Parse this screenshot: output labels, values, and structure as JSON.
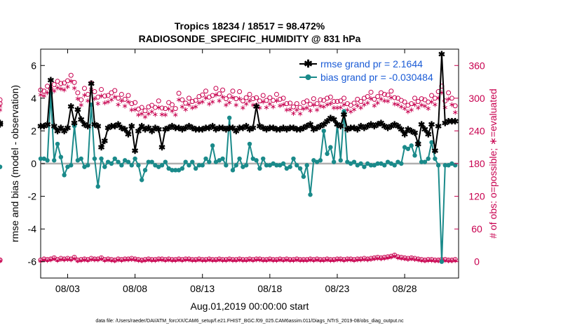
{
  "chart_data": {
    "type": "line",
    "title_line1": "Tropics 18234 / 18517 = 98.472%",
    "title_line2": "RADIOSONDE_SPECIFIC_HUMIDITY @ 831 hPa",
    "xlabel": "Aug.01,2019 00:00:00 start",
    "ylabel": "rmse and bias (model - observation)",
    "y2label": "# of obs: o=possible; ∗=evaluated",
    "footnote": "data file: /Users/raeder/DAI/ATM_forcXX/CAM6_setup/f.e21.FHIST_BGC.f09_025.CAM6assim.011/Diags_NTrS_2019-08/obs_diag_output.nc",
    "xlim": [
      1.0,
      32.0
    ],
    "ylim": [
      -7,
      7
    ],
    "y2lim": [
      -30,
      390
    ],
    "xticks": [
      3,
      8,
      13,
      18,
      23,
      28
    ],
    "xtick_labels": [
      "08/03",
      "08/08",
      "08/13",
      "08/18",
      "08/23",
      "08/28"
    ],
    "yticks": [
      -6,
      -4,
      -2,
      0,
      2,
      4,
      6
    ],
    "ytick_labels": [
      "-6",
      "-4",
      "-2",
      "0",
      "2",
      "4",
      "6"
    ],
    "y2ticks": [
      0,
      60,
      120,
      180,
      240,
      300,
      360
    ],
    "y2tick_labels": [
      "0",
      "60",
      "120",
      "180",
      "240",
      "300",
      "360"
    ],
    "legend": [
      {
        "label": "rmse grand pr = 2.1644",
        "color": "#000000"
      },
      {
        "label": "bias grand pr = -0.030484",
        "color": "#1a8a8a"
      }
    ],
    "colors": {
      "rmse": "#000000",
      "bias": "#1a8a8a",
      "obs": "#c8004f",
      "zero": "#b0b0b0"
    },
    "x": [
      1.0,
      1.25,
      1.5,
      1.75,
      2.0,
      2.25,
      2.5,
      2.75,
      3.0,
      3.25,
      3.5,
      3.75,
      4.0,
      4.25,
      4.5,
      4.75,
      5.0,
      5.25,
      5.5,
      5.75,
      6.0,
      6.25,
      6.5,
      6.75,
      7.0,
      7.25,
      7.5,
      7.75,
      8.0,
      8.25,
      8.5,
      8.75,
      9.0,
      9.25,
      9.5,
      9.75,
      10.0,
      10.25,
      10.5,
      10.75,
      11.0,
      11.25,
      11.5,
      11.75,
      12.0,
      12.25,
      12.5,
      12.75,
      13.0,
      13.25,
      13.5,
      13.75,
      14.0,
      14.25,
      14.5,
      14.75,
      15.0,
      15.25,
      15.5,
      15.75,
      16.0,
      16.25,
      16.5,
      16.75,
      17.0,
      17.25,
      17.5,
      17.75,
      18.0,
      18.25,
      18.5,
      18.75,
      19.0,
      19.25,
      19.5,
      19.75,
      20.0,
      20.25,
      20.5,
      20.75,
      21.0,
      21.25,
      21.5,
      21.75,
      22.0,
      22.25,
      22.5,
      22.75,
      23.0,
      23.25,
      23.5,
      23.75,
      24.0,
      24.25,
      24.5,
      24.75,
      25.0,
      25.25,
      25.5,
      25.75,
      26.0,
      26.25,
      26.5,
      26.75,
      27.0,
      27.25,
      27.5,
      27.75,
      28.0,
      28.25,
      28.5,
      28.75,
      29.0,
      29.25,
      29.5,
      29.75,
      30.0,
      30.25,
      30.5,
      30.75,
      31.0,
      31.25,
      31.5,
      31.75
    ],
    "rmse": [
      2.3,
      2.3,
      2.4,
      5.1,
      2.3,
      2.0,
      2.2,
      2.0,
      2.2,
      3.5,
      2.5,
      3.3,
      2.7,
      2.4,
      2.3,
      4.9,
      2.4,
      2.3,
      1.0,
      1.4,
      2.2,
      2.3,
      2.3,
      2.4,
      2.2,
      2.1,
      1.8,
      2.3,
      0.8,
      2.0,
      2.3,
      2.1,
      2.2,
      2.0,
      2.2,
      2.1,
      1.0,
      2.1,
      2.2,
      2.3,
      2.2,
      2.2,
      2.1,
      2.2,
      2.3,
      2.2,
      2.1,
      2.1,
      2.1,
      2.2,
      2.2,
      2.3,
      2.1,
      2.2,
      2.2,
      2.1,
      2.2,
      2.2,
      2.0,
      2.2,
      2.2,
      2.3,
      2.1,
      2.2,
      3.5,
      2.3,
      2.2,
      2.1,
      2.2,
      2.2,
      2.1,
      2.1,
      2.2,
      2.1,
      2.2,
      2.2,
      2.1,
      2.1,
      2.2,
      2.3,
      2.4,
      2.1,
      2.2,
      2.3,
      2.4,
      2.6,
      2.8,
      2.7,
      2.4,
      2.3,
      3.0,
      2.1,
      2.2,
      2.2,
      2.1,
      2.3,
      2.2,
      2.3,
      2.4,
      2.3,
      2.4,
      2.5,
      2.3,
      2.2,
      2.3,
      2.4,
      2.3,
      2.1,
      1.8,
      2.1,
      2.0,
      1.9,
      1.2,
      2.4,
      2.1,
      1.8,
      2.4,
      0.8,
      2.3,
      6.7,
      2.5,
      2.6,
      2.6,
      2.6,
      2.5,
      2.4
    ],
    "bias": [
      0.3,
      0.3,
      0.2,
      4.3,
      0.2,
      1.2,
      0.4,
      -0.7,
      -0.2,
      -0.1,
      2.3,
      0.2,
      0.3,
      -0.2,
      -0.1,
      3.6,
      0.3,
      -1.4,
      0.3,
      -0.2,
      0.1,
      0.0,
      0.3,
      0.1,
      -0.1,
      0.2,
      0.1,
      -0.1,
      0.3,
      -0.1,
      -1.0,
      -0.4,
      0.1,
      0.1,
      -0.1,
      -0.2,
      -0.1,
      0.1,
      -0.3,
      -0.4,
      -0.4,
      -0.4,
      -0.3,
      0.1,
      -0.1,
      0.1,
      -0.3,
      -0.1,
      -0.1,
      0.3,
      0.1,
      1.1,
      0.1,
      0.2,
      0.3,
      -0.1,
      2.8,
      -0.4,
      -0.1,
      0.3,
      -0.2,
      -0.1,
      1.2,
      0.3,
      0.2,
      -0.3,
      0.3,
      -0.1,
      -0.1,
      0.0,
      -0.1,
      -0.1,
      0.0,
      -0.3,
      -0.2,
      0.3,
      -0.1,
      -0.3,
      -0.8,
      -0.1,
      -1.9,
      0.2,
      0.1,
      0.2,
      2.0,
      0.6,
      1.0,
      0.1,
      2.4,
      0.2,
      3.2,
      0.1,
      0.0,
      0.1,
      -0.1,
      0.0,
      -0.2,
      0.0,
      -0.1,
      -0.1,
      0.0,
      0.0,
      -0.1,
      0.1,
      0.0,
      -0.1,
      0.1,
      0.0,
      1.0,
      0.9,
      1.1,
      0.5,
      1.3,
      0.1,
      0.1,
      0.3,
      1.3,
      0.3,
      -0.1,
      -6.0,
      -0.1,
      -0.1,
      0.0,
      -0.1,
      -0.2,
      -0.2
    ],
    "obs_possible": [
      315,
      313,
      322,
      317,
      325,
      331,
      327,
      328,
      332,
      342,
      329,
      310,
      297,
      318,
      307,
      328,
      312,
      302,
      316,
      304,
      305,
      310,
      314,
      300,
      307,
      298,
      305,
      290,
      292,
      280,
      283,
      277,
      284,
      287,
      283,
      295,
      282,
      281,
      292,
      288,
      281,
      309,
      297,
      291,
      300,
      294,
      296,
      303,
      306,
      313,
      302,
      305,
      318,
      308,
      315,
      299,
      304,
      313,
      299,
      312,
      295,
      301,
      307,
      299,
      301,
      295,
      305,
      296,
      301,
      296,
      307,
      298,
      300,
      290,
      291,
      284,
      290,
      283,
      292,
      295,
      289,
      299,
      290,
      297,
      296,
      300,
      302,
      294,
      294,
      295,
      300,
      290,
      287,
      291,
      298,
      294,
      300,
      303,
      311,
      298,
      303,
      310,
      307,
      306,
      313,
      301,
      300,
      296,
      293,
      287,
      290,
      300,
      294,
      299,
      297,
      293,
      305,
      300,
      312,
      322,
      295,
      310,
      300,
      286,
      290,
      297
    ],
    "obs_evaluated": [
      307,
      305,
      311,
      310,
      314,
      320,
      318,
      316,
      322,
      332,
      319,
      300,
      288,
      306,
      296,
      317,
      300,
      291,
      305,
      292,
      294,
      298,
      303,
      289,
      296,
      286,
      294,
      279,
      280,
      270,
      272,
      266,
      272,
      276,
      271,
      284,
      271,
      270,
      281,
      277,
      270,
      298,
      285,
      280,
      289,
      283,
      285,
      292,
      294,
      301,
      290,
      294,
      307,
      296,
      303,
      288,
      293,
      302,
      288,
      300,
      283,
      290,
      296,
      288,
      289,
      283,
      294,
      284,
      290,
      285,
      296,
      287,
      289,
      279,
      280,
      273,
      279,
      272,
      281,
      283,
      278,
      288,
      279,
      286,
      285,
      289,
      291,
      283,
      283,
      284,
      289,
      279,
      276,
      280,
      287,
      283,
      289,
      292,
      300,
      287,
      292,
      299,
      296,
      295,
      302,
      290,
      289,
      285,
      282,
      276,
      279,
      289,
      283,
      288,
      286,
      282,
      294,
      289,
      301,
      311,
      284,
      299,
      289,
      275,
      279,
      286
    ],
    "obs_possible_low": [
      3,
      5,
      4,
      5,
      7,
      4,
      6,
      5,
      6,
      5,
      8,
      3,
      4,
      5,
      4,
      6,
      5,
      5,
      7,
      4,
      5,
      4,
      3,
      5,
      4,
      5,
      5,
      6,
      5,
      4,
      3,
      4,
      5,
      4,
      4,
      5,
      5,
      4,
      5,
      4,
      4,
      5,
      4,
      5,
      5,
      4,
      4,
      5,
      4,
      4,
      5,
      4,
      4,
      5,
      4,
      4,
      5,
      4,
      4,
      5,
      4,
      4,
      5,
      4,
      5,
      5,
      4,
      4,
      5,
      4,
      4,
      5,
      4,
      5,
      4,
      4,
      5,
      4,
      4,
      4,
      5,
      4,
      5,
      4,
      4,
      5,
      4,
      4,
      5,
      5,
      4,
      5,
      5,
      4,
      5,
      5,
      6,
      5,
      6,
      7,
      8,
      7,
      8,
      9,
      10,
      12,
      9,
      8,
      7,
      6,
      7,
      6,
      5,
      4,
      3,
      4,
      4,
      3,
      3,
      4,
      4,
      3,
      3,
      4,
      3,
      3
    ],
    "obs_evaluated_low": [
      2,
      4,
      3,
      4,
      6,
      3,
      5,
      4,
      5,
      4,
      7,
      2,
      3,
      4,
      3,
      5,
      4,
      4,
      6,
      3,
      4,
      3,
      2,
      4,
      3,
      4,
      4,
      5,
      4,
      3,
      2,
      3,
      4,
      3,
      3,
      4,
      4,
      3,
      4,
      3,
      3,
      4,
      3,
      4,
      4,
      3,
      3,
      4,
      3,
      3,
      4,
      3,
      3,
      4,
      3,
      3,
      4,
      3,
      3,
      4,
      3,
      3,
      4,
      3,
      4,
      4,
      3,
      3,
      4,
      3,
      3,
      4,
      3,
      4,
      3,
      3,
      4,
      3,
      3,
      3,
      4,
      3,
      4,
      3,
      3,
      4,
      3,
      3,
      4,
      4,
      3,
      4,
      4,
      3,
      4,
      4,
      5,
      4,
      5,
      6,
      7,
      6,
      7,
      8,
      9,
      11,
      8,
      7,
      6,
      5,
      6,
      5,
      4,
      3,
      2,
      3,
      3,
      2,
      2,
      3,
      3,
      2,
      2,
      3,
      2,
      2
    ]
  }
}
